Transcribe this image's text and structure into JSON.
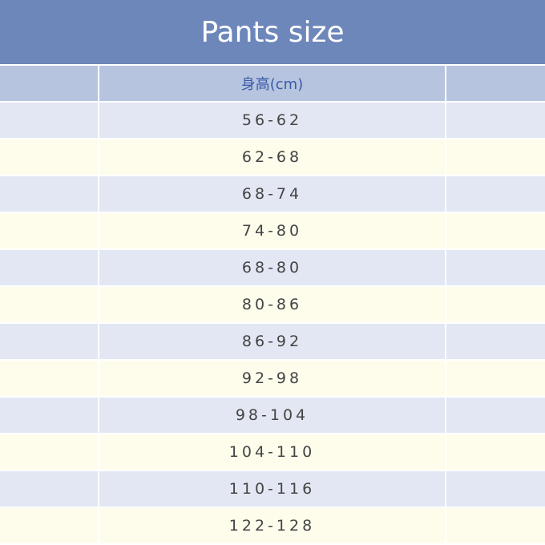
{
  "title": "Pants size",
  "header": {
    "col1": "",
    "col2": "身高(cm)",
    "col3": ""
  },
  "rows": [
    "56-62",
    "62-68",
    "68-74",
    "74-80",
    "68-80",
    "80-86",
    "86-92",
    "92-98",
    "98-104",
    "104-110",
    "110-116",
    "122-128"
  ],
  "colors": {
    "title_bg": "#6d87bb",
    "header_bg": "#b7c4df",
    "row_blue": "#e2e7f3",
    "row_yellow": "#fefdec",
    "header_text": "#3a5aa8"
  }
}
